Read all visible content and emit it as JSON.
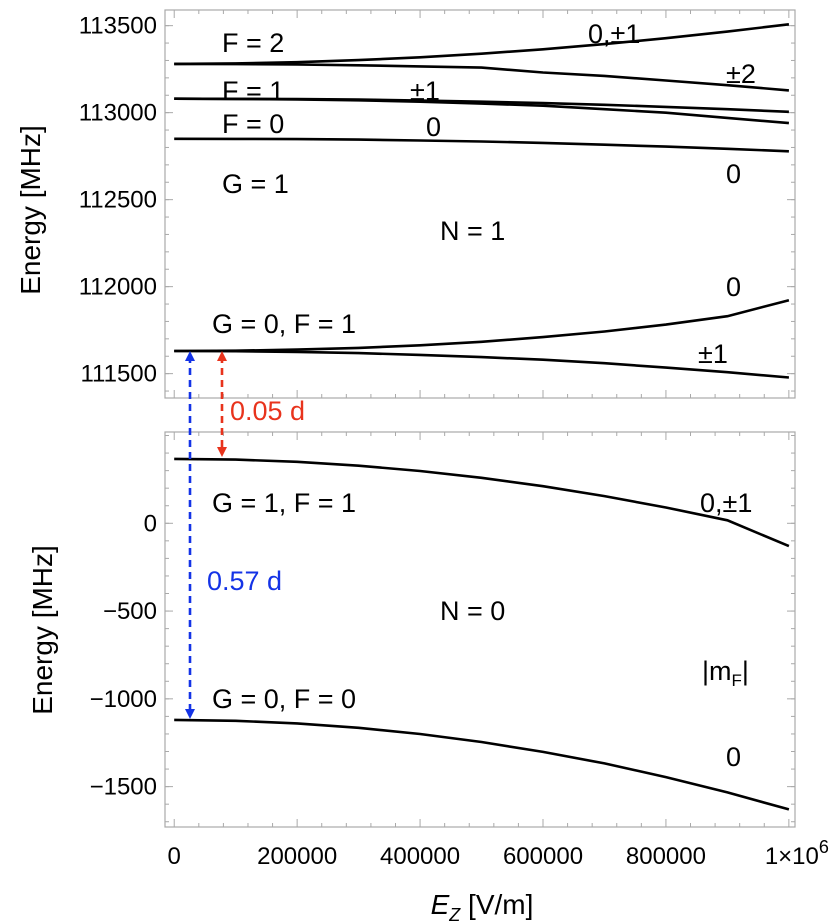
{
  "chart_data": [
    {
      "type": "line",
      "title": "",
      "ylabel": "Energy [MHz]",
      "xlim": [
        -15000,
        1010000
      ],
      "ylim": [
        111360,
        113590
      ],
      "yticks": [
        111500,
        112000,
        112500,
        113000,
        113500
      ],
      "ytick_labels": [
        "111500",
        "112000",
        "112500",
        "113000",
        "113500"
      ],
      "series": [
        {
          "x": [
            0,
            100000,
            200000,
            300000,
            400000,
            500000,
            600000,
            700000,
            800000,
            900000,
            1000000
          ],
          "y": [
            113280,
            113283,
            113290,
            113302,
            113318,
            113339,
            113364,
            113394,
            113428,
            113466,
            113508
          ]
        },
        {
          "x": [
            0,
            100000,
            200000,
            300000,
            400000,
            500000,
            600000,
            700000,
            800000,
            900000,
            1000000
          ],
          "y": [
            113280,
            113279,
            113277,
            113272,
            113266,
            113259,
            113231,
            113211,
            113185,
            113158,
            113128
          ]
        },
        {
          "x": [
            0,
            100000,
            200000,
            300000,
            400000,
            500000,
            600000,
            700000,
            800000,
            900000,
            1000000
          ],
          "y": [
            113080,
            113079,
            113078,
            113075,
            113070,
            113063,
            113055,
            113045,
            113033,
            113020,
            113005
          ]
        },
        {
          "x": [
            0,
            100000,
            200000,
            300000,
            400000,
            500000,
            600000,
            700000,
            800000,
            900000,
            1000000
          ],
          "y": [
            113080,
            113079,
            113076,
            113071,
            113063,
            113052,
            113040,
            113020,
            113000,
            112970,
            112940
          ]
        },
        {
          "x": [
            0,
            100000,
            200000,
            300000,
            400000,
            500000,
            600000,
            700000,
            800000,
            900000,
            1000000
          ],
          "y": [
            112850,
            112849,
            112848,
            112845,
            112840,
            112834,
            112826,
            112816,
            112805,
            112792,
            112778
          ]
        },
        {
          "x": [
            0,
            100000,
            200000,
            300000,
            400000,
            500000,
            600000,
            700000,
            800000,
            900000,
            1000000
          ],
          "y": [
            111630,
            111632,
            111638,
            111648,
            111663,
            111683,
            111710,
            111742,
            111782,
            111830,
            111922
          ]
        },
        {
          "x": [
            0,
            100000,
            200000,
            300000,
            400000,
            500000,
            600000,
            700000,
            800000,
            900000,
            1000000
          ],
          "y": [
            111630,
            111629,
            111625,
            111618,
            111608,
            111595,
            111580,
            111560,
            111535,
            111508,
            111478
          ]
        }
      ],
      "annotations": [
        "F = 2",
        "F = 1",
        "F = 0",
        "G = 1",
        "N = 1",
        "G = 0, F = 1",
        "0,±1",
        "±2",
        "±1",
        "0",
        "0",
        "0",
        "±1"
      ]
    },
    {
      "type": "line",
      "title": "",
      "xlabel": "E_Z [V/m]",
      "ylabel": "Energy [MHz]",
      "xlim": [
        -15000,
        1010000
      ],
      "ylim": [
        -1730,
        520
      ],
      "xticks": [
        0,
        200000,
        400000,
        600000,
        800000,
        1000000
      ],
      "xtick_labels": [
        "0",
        "200000",
        "400000",
        "600000",
        "800000",
        "1×10"
      ],
      "x_exponent": "6",
      "yticks": [
        -1500,
        -1000,
        -500,
        0
      ],
      "ytick_labels": [
        "−1500",
        "−1000",
        "−500",
        "0"
      ],
      "series": [
        {
          "x": [
            0,
            100000,
            200000,
            300000,
            400000,
            500000,
            600000,
            700000,
            800000,
            900000,
            1000000
          ],
          "y": [
            367,
            363,
            350,
            328,
            298,
            259,
            211,
            155,
            90,
            17,
            -130
          ]
        },
        {
          "x": [
            0,
            100000,
            200000,
            300000,
            400000,
            500000,
            600000,
            700000,
            800000,
            900000,
            1000000
          ],
          "y": [
            -1120,
            -1125,
            -1140,
            -1165,
            -1200,
            -1246,
            -1302,
            -1368,
            -1446,
            -1533,
            -1630
          ]
        }
      ],
      "annotations": [
        "G = 1, F = 1",
        "N = 0",
        "G = 0, F = 0",
        "0,±1",
        "|m",
        "F",
        "|",
        "0"
      ]
    }
  ],
  "arrows": {
    "red_label": "0.05 d",
    "blue_label": "0.57 d",
    "red_color": "#e8331c",
    "blue_color": "#1433e6"
  }
}
